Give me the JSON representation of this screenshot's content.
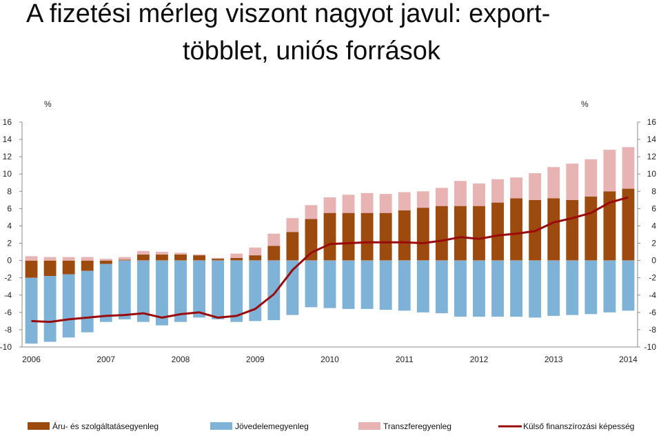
{
  "title": {
    "line1": "A fizetési mérleg viszont nagyot javul: export-",
    "line2": "többlet, uniós források"
  },
  "colors": {
    "trade": "#9C4A0E",
    "income": "#7FB2D7",
    "transfer": "#E8B3B3",
    "line": "#9B0A0A",
    "axis": "#888888"
  },
  "chart_data": {
    "type": "bar",
    "stacked": true,
    "y_unit_left": "%",
    "y_unit_right": "%",
    "ylim": [
      -10,
      16
    ],
    "yticks": [
      -10,
      -8,
      -6,
      -4,
      -2,
      0,
      2,
      4,
      6,
      8,
      10,
      12,
      14,
      16
    ],
    "x_year_labels": [
      "2006",
      "2007",
      "2008",
      "2009",
      "2010",
      "2011",
      "2012",
      "2013",
      "2014"
    ],
    "quarters_per_year": 4,
    "series": [
      {
        "name": "Áru- és szolgáltatásegyenleg",
        "type": "bar",
        "color_key": "trade",
        "values": [
          -2.0,
          -1.8,
          -1.6,
          -1.2,
          -0.4,
          0.1,
          0.7,
          0.7,
          0.7,
          0.6,
          0.2,
          0.3,
          0.6,
          1.7,
          3.3,
          4.8,
          5.5,
          5.5,
          5.5,
          5.5,
          5.8,
          6.1,
          6.3,
          6.3,
          6.3,
          6.7,
          7.2,
          7.0,
          7.2,
          7.0,
          7.4,
          8.0,
          8.3
        ]
      },
      {
        "name": "Jövedelemegyenleg",
        "type": "bar",
        "color_key": "income",
        "values": [
          -7.6,
          -7.6,
          -7.3,
          -7.1,
          -6.7,
          -6.8,
          -7.1,
          -7.5,
          -7.1,
          -6.6,
          -6.8,
          -7.1,
          -7.0,
          -6.9,
          -6.3,
          -5.4,
          -5.5,
          -5.6,
          -5.6,
          -5.7,
          -5.8,
          -6.0,
          -6.1,
          -6.5,
          -6.5,
          -6.5,
          -6.5,
          -6.6,
          -6.4,
          -6.3,
          -6.2,
          -6.0,
          -5.8
        ]
      },
      {
        "name": "Transzferegyenleg",
        "type": "bar",
        "color_key": "transfer",
        "values": [
          0.5,
          0.4,
          0.4,
          0.4,
          0.2,
          0.3,
          0.4,
          0.3,
          0.2,
          0.1,
          0.1,
          0.5,
          0.9,
          1.4,
          1.6,
          1.6,
          1.8,
          2.1,
          2.3,
          2.2,
          2.1,
          1.9,
          2.1,
          2.9,
          2.6,
          2.7,
          2.4,
          3.1,
          3.6,
          4.2,
          4.3,
          4.8,
          4.8
        ]
      },
      {
        "name": "Külső finanszírozási képesség",
        "type": "line",
        "color_key": "line",
        "values": [
          -7.0,
          -7.1,
          -6.8,
          -6.6,
          -6.4,
          -6.3,
          -6.1,
          -6.6,
          -6.2,
          -6.0,
          -6.6,
          -6.4,
          -5.6,
          -3.9,
          -1.1,
          0.9,
          1.9,
          2.0,
          2.1,
          2.1,
          2.1,
          2.0,
          2.3,
          2.7,
          2.5,
          2.9,
          3.1,
          3.4,
          4.4,
          4.9,
          5.5,
          6.7,
          7.3
        ]
      }
    ],
    "legend_position": "bottom",
    "grid": false
  }
}
